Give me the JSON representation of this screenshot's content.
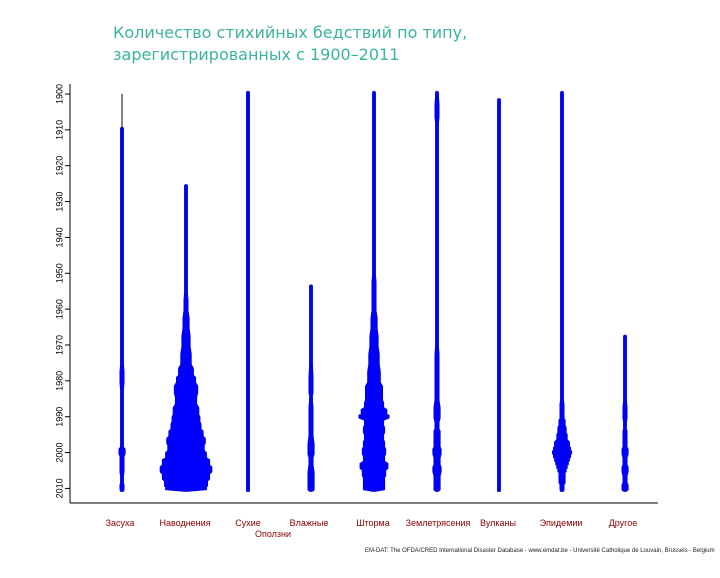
{
  "title_line1": "Количество стихийных бедствий по типу,",
  "title_line2": "зарегистрированных с 1900–2011",
  "source": "EM-DAT: The OFDA/CRED International Disaster Database - www.emdat.be - Université Catholique de Louvain, Brussels - Belgium",
  "colors": {
    "fill": "#0000ff",
    "line": "#333333",
    "category_label": "#8b0000",
    "title": "#3cb39a"
  },
  "chart_data": {
    "type": "violin",
    "title": "Количество стихийных бедствий по типу, зарегистрированных с 1900–2011",
    "ylim": [
      1900,
      2011
    ],
    "y_ticks": [
      "1900",
      "1910",
      "1920",
      "1930",
      "1940",
      "1950",
      "1960",
      "1970",
      "1980",
      "1990",
      "2000",
      "2010"
    ],
    "categories": [
      {
        "label": "Засуха",
        "label_row": 0
      },
      {
        "label": "Наводнения",
        "label_row": 0
      },
      {
        "label": "Сухие",
        "label_row": 0
      },
      {
        "label": "Оползни",
        "label_row": 1
      },
      {
        "label": "Влажные",
        "label_row": 0
      },
      {
        "label": "Шторма",
        "label_row": 0
      },
      {
        "label": "Землетрясения",
        "label_row": 0
      },
      {
        "label": "Вулканы",
        "label_row": 0
      },
      {
        "label": "Эпидемии",
        "label_row": 0
      },
      {
        "label": "Другое",
        "label_row": 0
      }
    ],
    "series": [
      {
        "name": "Засуха",
        "min_year": 1900,
        "max_year": 2011,
        "counts": [
          [
            1910,
            1
          ],
          [
            1940,
            1
          ],
          [
            1964,
            1
          ],
          [
            1970,
            1
          ],
          [
            1975,
            1
          ],
          [
            1980,
            2
          ],
          [
            1985,
            1
          ],
          [
            1990,
            1
          ],
          [
            1995,
            1
          ],
          [
            1998,
            1
          ],
          [
            2000,
            3
          ],
          [
            2002,
            2
          ],
          [
            2005,
            2
          ],
          [
            2008,
            1
          ],
          [
            2010,
            2
          ]
        ]
      },
      {
        "name": "Наводнения",
        "min_year": 1926,
        "max_year": 2011,
        "counts": [
          [
            1926,
            1
          ],
          [
            1949,
            1
          ],
          [
            1955,
            1
          ],
          [
            1960,
            2
          ],
          [
            1965,
            3
          ],
          [
            1970,
            4
          ],
          [
            1975,
            5
          ],
          [
            1978,
            7
          ],
          [
            1980,
            9
          ],
          [
            1983,
            11
          ],
          [
            1986,
            10
          ],
          [
            1989,
            12
          ],
          [
            1991,
            13
          ],
          [
            1993,
            14
          ],
          [
            1995,
            16
          ],
          [
            1997,
            18
          ],
          [
            1999,
            17
          ],
          [
            2001,
            19
          ],
          [
            2003,
            22
          ],
          [
            2005,
            24
          ],
          [
            2007,
            22
          ],
          [
            2009,
            20
          ],
          [
            2010,
            19
          ]
        ]
      },
      {
        "name": "Сухие Оползни",
        "min_year": 1900,
        "max_year": 2011,
        "counts": [
          [
            1900,
            1
          ],
          [
            1915,
            1
          ],
          [
            1937,
            1
          ],
          [
            1960,
            1
          ],
          [
            1970,
            1
          ],
          [
            1980,
            1
          ],
          [
            1985,
            1
          ],
          [
            1990,
            1
          ],
          [
            2000,
            1
          ],
          [
            2005,
            1
          ],
          [
            2010,
            1
          ]
        ]
      },
      {
        "name": "Влажные Оползни",
        "min_year": 1954,
        "max_year": 2011,
        "counts": [
          [
            1954,
            1
          ],
          [
            1960,
            1
          ],
          [
            1965,
            1
          ],
          [
            1975,
            1
          ],
          [
            1983,
            2
          ],
          [
            1985,
            1
          ],
          [
            1990,
            2
          ],
          [
            1995,
            2
          ],
          [
            2000,
            3
          ],
          [
            2003,
            2
          ],
          [
            2008,
            3
          ],
          [
            2010,
            3
          ]
        ]
      },
      {
        "name": "Шторма",
        "min_year": 1900,
        "max_year": 2011,
        "counts": [
          [
            1900,
            1
          ],
          [
            1905,
            1
          ],
          [
            1915,
            1
          ],
          [
            1922,
            1
          ],
          [
            1930,
            1
          ],
          [
            1940,
            1
          ],
          [
            1950,
            1
          ],
          [
            1955,
            2
          ],
          [
            1960,
            2
          ],
          [
            1965,
            3
          ],
          [
            1970,
            4
          ],
          [
            1975,
            5
          ],
          [
            1980,
            6
          ],
          [
            1983,
            8
          ],
          [
            1985,
            8
          ],
          [
            1987,
            9
          ],
          [
            1989,
            12
          ],
          [
            1990,
            14
          ],
          [
            1992,
            9
          ],
          [
            1994,
            10
          ],
          [
            1996,
            9
          ],
          [
            1998,
            10
          ],
          [
            2000,
            11
          ],
          [
            2002,
            10
          ],
          [
            2004,
            13
          ],
          [
            2006,
            11
          ],
          [
            2008,
            10
          ],
          [
            2010,
            10
          ]
        ]
      },
      {
        "name": "Землетрясения",
        "min_year": 1900,
        "max_year": 2011,
        "counts": [
          [
            1900,
            1
          ],
          [
            1906,
            2
          ],
          [
            1910,
            1
          ],
          [
            1920,
            1
          ],
          [
            1930,
            1
          ],
          [
            1940,
            1
          ],
          [
            1950,
            1
          ],
          [
            1960,
            1
          ],
          [
            1970,
            1
          ],
          [
            1975,
            2
          ],
          [
            1980,
            2
          ],
          [
            1985,
            2
          ],
          [
            1990,
            3
          ],
          [
            1993,
            2
          ],
          [
            1995,
            3
          ],
          [
            1998,
            3
          ],
          [
            2000,
            4
          ],
          [
            2003,
            3
          ],
          [
            2005,
            4
          ],
          [
            2008,
            3
          ],
          [
            2010,
            3
          ]
        ]
      },
      {
        "name": "Вулканы",
        "min_year": 1902,
        "max_year": 2011,
        "counts": [
          [
            1902,
            1
          ],
          [
            1951,
            1
          ],
          [
            1968,
            1
          ],
          [
            1985,
            1
          ],
          [
            1991,
            1
          ],
          [
            2000,
            1
          ],
          [
            2005,
            1
          ],
          [
            2010,
            1
          ]
        ]
      },
      {
        "name": "Эпидемии",
        "min_year": 1900,
        "max_year": 2011,
        "counts": [
          [
            1900,
            1
          ],
          [
            1905,
            1
          ],
          [
            1940,
            1
          ],
          [
            1965,
            1
          ],
          [
            1969,
            1
          ],
          [
            1975,
            1
          ],
          [
            1980,
            1
          ],
          [
            1985,
            1
          ],
          [
            1988,
            2
          ],
          [
            1990,
            2
          ],
          [
            1992,
            3
          ],
          [
            1994,
            4
          ],
          [
            1996,
            5
          ],
          [
            1998,
            7
          ],
          [
            1999,
            8
          ],
          [
            2000,
            9
          ],
          [
            2001,
            8
          ],
          [
            2002,
            7
          ],
          [
            2003,
            6
          ],
          [
            2004,
            5
          ],
          [
            2005,
            4
          ],
          [
            2006,
            3
          ],
          [
            2008,
            3
          ],
          [
            2010,
            2
          ]
        ]
      },
      {
        "name": "Другое",
        "min_year": 1968,
        "max_year": 2011,
        "counts": [
          [
            1968,
            1
          ],
          [
            1972,
            1
          ],
          [
            1978,
            1
          ],
          [
            1985,
            1
          ],
          [
            1990,
            2
          ],
          [
            1993,
            1
          ],
          [
            1995,
            2
          ],
          [
            1998,
            2
          ],
          [
            2000,
            3
          ],
          [
            2003,
            2
          ],
          [
            2005,
            3
          ],
          [
            2008,
            2
          ],
          [
            2010,
            3
          ]
        ]
      }
    ]
  }
}
